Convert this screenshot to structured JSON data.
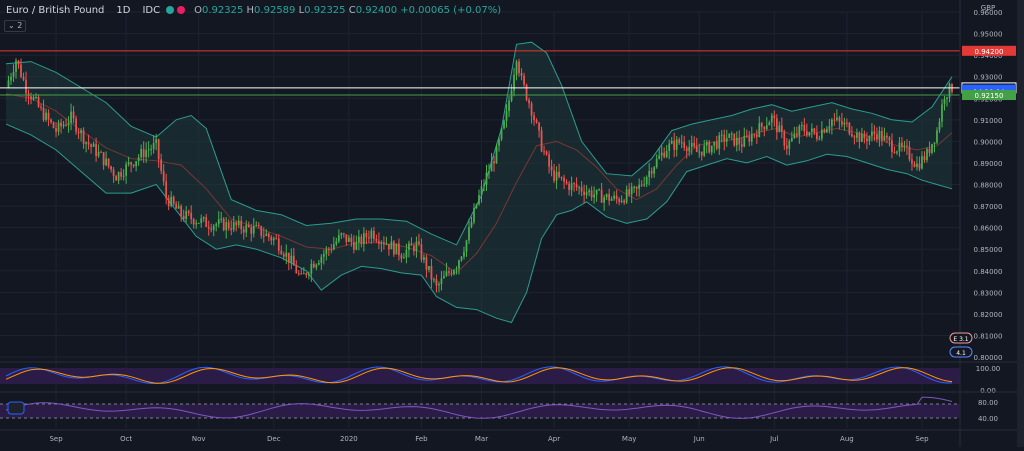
{
  "header": {
    "symbol": "Euro / British Pound",
    "interval": "1D",
    "source": "IDC",
    "open_label": "O",
    "open": "0.92325",
    "high_label": "H",
    "high": "0.92589",
    "low_label": "L",
    "low": "0.92325",
    "close_label": "C",
    "close": "0.92400",
    "change": "+0.00065 (+0.07%)",
    "collapse_badge": "2"
  },
  "currency": "GBP",
  "colors": {
    "background": "#131722",
    "up": "#26a69a",
    "up_candle": "#4caf50",
    "down_candle": "#ef5350",
    "band_fill": "#1d3b3a",
    "band_line": "#2a9d8f",
    "basis_line": "#7b3535",
    "resistance": "#e53935",
    "support": "#43a047",
    "price_line": "#ffffff",
    "stoch_k": "#2962ff",
    "stoch_d": "#ff9800",
    "indicator_band": "#2d1d4a",
    "rsi_line": "#7e57c2"
  },
  "price_badges": [
    {
      "name": "resistance-badge",
      "label": "0.94200",
      "value": 0.942,
      "bg": "#e53935",
      "fg": "#ffffff"
    },
    {
      "name": "last-price-badge",
      "label": "0.92480",
      "value": 0.9248,
      "bg": "#131722",
      "fg": "#ffffff",
      "border": "#ffffff"
    },
    {
      "name": "close-badge",
      "label": "0.92400",
      "value": 0.924,
      "bg": "#2962ff",
      "fg": "#ffffff"
    },
    {
      "name": "countdown-badge",
      "label": "14:20:04",
      "value": 0.9232,
      "bg": "#2962ff",
      "fg": "#ffffff"
    },
    {
      "name": "support-badge",
      "label": "0.92150",
      "value": 0.9215,
      "bg": "#43a047",
      "fg": "#ffffff"
    }
  ],
  "event_badges": [
    {
      "name": "dividend-badge",
      "label": "E 3.1"
    },
    {
      "name": "earnings-badge",
      "label": "4.1"
    }
  ],
  "oscillator_ticks": [
    "100.00",
    "0.00"
  ],
  "rsi_ticks": [
    "80.00",
    "40.00"
  ],
  "chart_data": {
    "type": "candlestick",
    "title": "Euro / British Pound",
    "interval": "1D",
    "yaxis": {
      "ticks": [
        "0.96000",
        "0.95000",
        "0.94000",
        "0.93000",
        "0.92000",
        "0.91000",
        "0.90000",
        "0.89000",
        "0.88000",
        "0.87000",
        "0.86000",
        "0.85000",
        "0.84000",
        "0.83000",
        "0.82000",
        "0.81000",
        "0.80000"
      ],
      "range": [
        0.8,
        0.96
      ],
      "position": "right"
    },
    "xaxis": {
      "ticks": [
        "Sep",
        "Oct",
        "Nov",
        "Dec",
        "2020",
        "Feb",
        "Mar",
        "Apr",
        "May",
        "Jun",
        "Jul",
        "Aug",
        "Sep"
      ]
    },
    "horizontal_lines": [
      {
        "name": "resistance",
        "value": 0.942
      },
      {
        "name": "support",
        "value": 0.9215
      },
      {
        "name": "last-price",
        "value": 0.9248
      }
    ],
    "price_path": [
      [
        0,
        0.925
      ],
      [
        4,
        0.938
      ],
      [
        8,
        0.925
      ],
      [
        14,
        0.914
      ],
      [
        20,
        0.905
      ],
      [
        26,
        0.911
      ],
      [
        32,
        0.9
      ],
      [
        38,
        0.893
      ],
      [
        44,
        0.884
      ],
      [
        50,
        0.89
      ],
      [
        56,
        0.896
      ],
      [
        60,
        0.898
      ],
      [
        64,
        0.874
      ],
      [
        70,
        0.866
      ],
      [
        80,
        0.862
      ],
      [
        90,
        0.861
      ],
      [
        100,
        0.859
      ],
      [
        108,
        0.854
      ],
      [
        114,
        0.844
      ],
      [
        118,
        0.836
      ],
      [
        122,
        0.843
      ],
      [
        128,
        0.849
      ],
      [
        134,
        0.856
      ],
      [
        140,
        0.852
      ],
      [
        146,
        0.858
      ],
      [
        152,
        0.853
      ],
      [
        158,
        0.848
      ],
      [
        164,
        0.852
      ],
      [
        168,
        0.842
      ],
      [
        172,
        0.832
      ],
      [
        176,
        0.838
      ],
      [
        180,
        0.843
      ],
      [
        184,
        0.854
      ],
      [
        188,
        0.871
      ],
      [
        192,
        0.884
      ],
      [
        196,
        0.895
      ],
      [
        200,
        0.912
      ],
      [
        204,
        0.94
      ],
      [
        206,
        0.928
      ],
      [
        210,
        0.915
      ],
      [
        214,
        0.898
      ],
      [
        218,
        0.885
      ],
      [
        224,
        0.88
      ],
      [
        230,
        0.878
      ],
      [
        236,
        0.875
      ],
      [
        244,
        0.873
      ],
      [
        252,
        0.877
      ],
      [
        258,
        0.888
      ],
      [
        264,
        0.897
      ],
      [
        270,
        0.9
      ],
      [
        276,
        0.895
      ],
      [
        282,
        0.898
      ],
      [
        288,
        0.902
      ],
      [
        294,
        0.899
      ],
      [
        300,
        0.905
      ],
      [
        306,
        0.911
      ],
      [
        312,
        0.898
      ],
      [
        318,
        0.906
      ],
      [
        324,
        0.903
      ],
      [
        330,
        0.91
      ],
      [
        336,
        0.907
      ],
      [
        342,
        0.901
      ],
      [
        348,
        0.904
      ],
      [
        354,
        0.898
      ],
      [
        360,
        0.895
      ],
      [
        364,
        0.889
      ],
      [
        368,
        0.894
      ],
      [
        372,
        0.905
      ],
      [
        375,
        0.922
      ],
      [
        378,
        0.9248
      ]
    ],
    "bollinger_upper": [
      [
        0,
        0.936
      ],
      [
        10,
        0.937
      ],
      [
        20,
        0.932
      ],
      [
        30,
        0.925
      ],
      [
        40,
        0.918
      ],
      [
        50,
        0.907
      ],
      [
        60,
        0.902
      ],
      [
        68,
        0.91
      ],
      [
        74,
        0.912
      ],
      [
        80,
        0.906
      ],
      [
        90,
        0.873
      ],
      [
        100,
        0.868
      ],
      [
        110,
        0.866
      ],
      [
        120,
        0.861
      ],
      [
        130,
        0.862
      ],
      [
        140,
        0.864
      ],
      [
        150,
        0.864
      ],
      [
        160,
        0.863
      ],
      [
        170,
        0.857
      ],
      [
        180,
        0.852
      ],
      [
        190,
        0.875
      ],
      [
        198,
        0.906
      ],
      [
        204,
        0.945
      ],
      [
        210,
        0.946
      ],
      [
        216,
        0.941
      ],
      [
        222,
        0.926
      ],
      [
        230,
        0.9
      ],
      [
        240,
        0.885
      ],
      [
        250,
        0.884
      ],
      [
        258,
        0.892
      ],
      [
        266,
        0.905
      ],
      [
        274,
        0.908
      ],
      [
        282,
        0.91
      ],
      [
        290,
        0.912
      ],
      [
        298,
        0.915
      ],
      [
        306,
        0.917
      ],
      [
        314,
        0.914
      ],
      [
        322,
        0.916
      ],
      [
        330,
        0.918
      ],
      [
        338,
        0.915
      ],
      [
        346,
        0.913
      ],
      [
        354,
        0.91
      ],
      [
        362,
        0.909
      ],
      [
        370,
        0.916
      ],
      [
        378,
        0.93
      ]
    ],
    "bollinger_lower": [
      [
        0,
        0.908
      ],
      [
        10,
        0.903
      ],
      [
        20,
        0.896
      ],
      [
        30,
        0.886
      ],
      [
        40,
        0.876
      ],
      [
        50,
        0.876
      ],
      [
        60,
        0.88
      ],
      [
        68,
        0.868
      ],
      [
        76,
        0.856
      ],
      [
        84,
        0.85
      ],
      [
        92,
        0.852
      ],
      [
        100,
        0.85
      ],
      [
        110,
        0.846
      ],
      [
        120,
        0.84
      ],
      [
        126,
        0.831
      ],
      [
        134,
        0.838
      ],
      [
        142,
        0.842
      ],
      [
        150,
        0.841
      ],
      [
        158,
        0.839
      ],
      [
        166,
        0.838
      ],
      [
        172,
        0.828
      ],
      [
        180,
        0.823
      ],
      [
        188,
        0.822
      ],
      [
        196,
        0.818
      ],
      [
        202,
        0.816
      ],
      [
        208,
        0.83
      ],
      [
        214,
        0.855
      ],
      [
        220,
        0.866
      ],
      [
        226,
        0.868
      ],
      [
        232,
        0.872
      ],
      [
        240,
        0.865
      ],
      [
        248,
        0.862
      ],
      [
        256,
        0.864
      ],
      [
        264,
        0.872
      ],
      [
        272,
        0.886
      ],
      [
        280,
        0.889
      ],
      [
        288,
        0.892
      ],
      [
        296,
        0.89
      ],
      [
        304,
        0.893
      ],
      [
        312,
        0.889
      ],
      [
        320,
        0.891
      ],
      [
        328,
        0.894
      ],
      [
        336,
        0.893
      ],
      [
        344,
        0.89
      ],
      [
        352,
        0.887
      ],
      [
        360,
        0.885
      ],
      [
        366,
        0.882
      ],
      [
        372,
        0.88
      ],
      [
        378,
        0.878
      ]
    ],
    "bollinger_basis": [
      [
        0,
        0.922
      ],
      [
        10,
        0.92
      ],
      [
        20,
        0.914
      ],
      [
        30,
        0.905
      ],
      [
        40,
        0.897
      ],
      [
        50,
        0.892
      ],
      [
        60,
        0.891
      ],
      [
        70,
        0.889
      ],
      [
        80,
        0.878
      ],
      [
        90,
        0.864
      ],
      [
        100,
        0.86
      ],
      [
        110,
        0.856
      ],
      [
        120,
        0.851
      ],
      [
        130,
        0.85
      ],
      [
        140,
        0.853
      ],
      [
        150,
        0.853
      ],
      [
        160,
        0.851
      ],
      [
        170,
        0.847
      ],
      [
        180,
        0.839
      ],
      [
        188,
        0.848
      ],
      [
        196,
        0.862
      ],
      [
        204,
        0.881
      ],
      [
        212,
        0.898
      ],
      [
        220,
        0.9
      ],
      [
        228,
        0.896
      ],
      [
        236,
        0.888
      ],
      [
        244,
        0.878
      ],
      [
        252,
        0.873
      ],
      [
        260,
        0.878
      ],
      [
        268,
        0.889
      ],
      [
        276,
        0.898
      ],
      [
        284,
        0.9
      ],
      [
        292,
        0.901
      ],
      [
        300,
        0.904
      ],
      [
        308,
        0.906
      ],
      [
        316,
        0.902
      ],
      [
        324,
        0.904
      ],
      [
        332,
        0.906
      ],
      [
        340,
        0.904
      ],
      [
        348,
        0.901
      ],
      [
        356,
        0.898
      ],
      [
        364,
        0.896
      ],
      [
        372,
        0.898
      ],
      [
        378,
        0.904
      ]
    ]
  }
}
